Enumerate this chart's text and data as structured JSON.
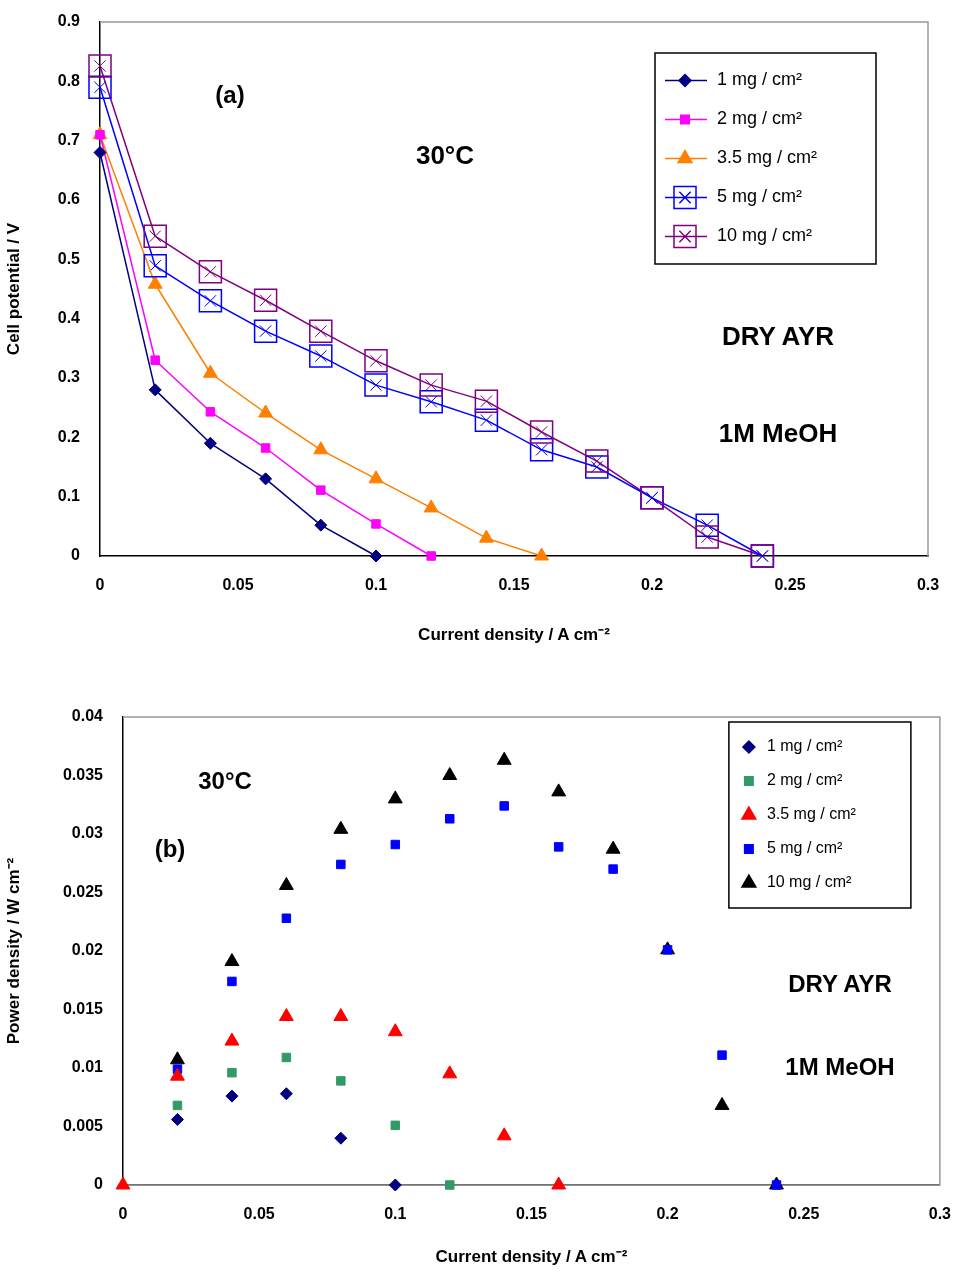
{
  "chart_data": [
    {
      "type": "line",
      "xlabel": "Current density / A cm⁻²",
      "ylabel": "Cell potential / V",
      "x": [
        0,
        0.02,
        0.04,
        0.06,
        0.08,
        0.1,
        0.12,
        0.14,
        0.16,
        0.18,
        0.2,
        0.22,
        0.24
      ],
      "series": [
        {
          "name": "1 mg / cm²",
          "color": "#000080",
          "marker": "diamond",
          "values": [
            0.68,
            0.28,
            0.19,
            0.13,
            0.052,
            0,
            null,
            null,
            null,
            null,
            null,
            null,
            null
          ]
        },
        {
          "name": "2 mg / cm²",
          "color": "#ff00ff",
          "marker": "square",
          "values": [
            0.71,
            0.33,
            0.243,
            0.182,
            0.111,
            0.054,
            0,
            null,
            null,
            null,
            null,
            null,
            null
          ]
        },
        {
          "name": "3.5 mg / cm²",
          "color": "#ff8000",
          "marker": "triangle",
          "values": [
            0.71,
            0.458,
            0.308,
            0.241,
            0.179,
            0.13,
            0.081,
            0.03,
            0,
            null,
            null,
            null,
            null
          ]
        },
        {
          "name": "5 mg / cm²",
          "color": "#0000ff",
          "marker": "cross",
          "values": [
            0.79,
            0.489,
            0.43,
            0.379,
            0.337,
            0.288,
            0.26,
            0.229,
            0.179,
            0.15,
            0.098,
            0.052,
            0
          ]
        },
        {
          "name": "10 mg / cm²",
          "color": "#800080",
          "marker": "cross",
          "values": [
            0.826,
            0.539,
            0.479,
            0.431,
            0.379,
            0.329,
            0.288,
            0.261,
            0.209,
            0.16,
            0.098,
            0.032,
            0
          ]
        }
      ],
      "xlim": [
        0,
        0.3
      ],
      "xticks": [
        0,
        0.05,
        0.1,
        0.15,
        0.2,
        0.25,
        0.3
      ],
      "ylim": [
        0,
        0.9
      ],
      "yticks": [
        0,
        0.1,
        0.2,
        0.3,
        0.4,
        0.5,
        0.6,
        0.7,
        0.8,
        0.9
      ],
      "legend": "top right",
      "line_style": "solid",
      "annotations": [
        "(a)",
        "30°C",
        "DRY AYR",
        "1M MeOH"
      ]
    },
    {
      "type": "scatter",
      "xlabel": "Current density / A cm⁻²",
      "ylabel": "Power density / W cm⁻²",
      "x": [
        0,
        0.02,
        0.04,
        0.06,
        0.08,
        0.1,
        0.12,
        0.14,
        0.16,
        0.18,
        0.2,
        0.22,
        0.24
      ],
      "series": [
        {
          "name": "1 mg / cm²",
          "color": "#000080",
          "marker": "diamond",
          "values": [
            null,
            0.0056,
            0.0076,
            0.0078,
            0.004,
            0,
            null,
            null,
            null,
            null,
            null,
            null,
            null
          ]
        },
        {
          "name": "2 mg / cm²",
          "color": "#339966",
          "marker": "square",
          "values": [
            null,
            0.0068,
            0.0096,
            0.0109,
            0.0089,
            0.0051,
            0,
            null,
            null,
            null,
            null,
            null,
            null
          ]
        },
        {
          "name": "3.5 mg / cm²",
          "color": "#ff0000",
          "marker": "triangle",
          "values": [
            0,
            0.0093,
            0.0123,
            0.0144,
            0.0144,
            0.0131,
            0.0095,
            0.0042,
            0,
            null,
            null,
            null,
            null
          ]
        },
        {
          "name": "5 mg / cm²",
          "color": "#0000ff",
          "marker": "square",
          "values": [
            null,
            0.0099,
            0.0174,
            0.0228,
            0.0274,
            0.0291,
            0.0313,
            0.0324,
            0.0289,
            0.027,
            0.0201,
            0.0111,
            0
          ]
        },
        {
          "name": "10 mg / cm²",
          "color": "#000000",
          "marker": "triangle",
          "values": [
            null,
            0.0107,
            0.0191,
            0.0256,
            0.0304,
            0.033,
            0.035,
            0.0363,
            0.0336,
            0.0287,
            0.0201,
            0.0068,
            0
          ]
        }
      ],
      "xlim": [
        0,
        0.3
      ],
      "xticks": [
        0,
        0.05,
        0.1,
        0.15,
        0.2,
        0.25,
        0.3
      ],
      "ylim": [
        0,
        0.04
      ],
      "yticks": [
        0,
        0.005,
        0.01,
        0.015,
        0.02,
        0.025,
        0.03,
        0.035,
        0.04
      ],
      "legend": "top right",
      "annotations": [
        "30°C",
        "(b)",
        "DRY AYR",
        "1M MeOH"
      ]
    }
  ]
}
